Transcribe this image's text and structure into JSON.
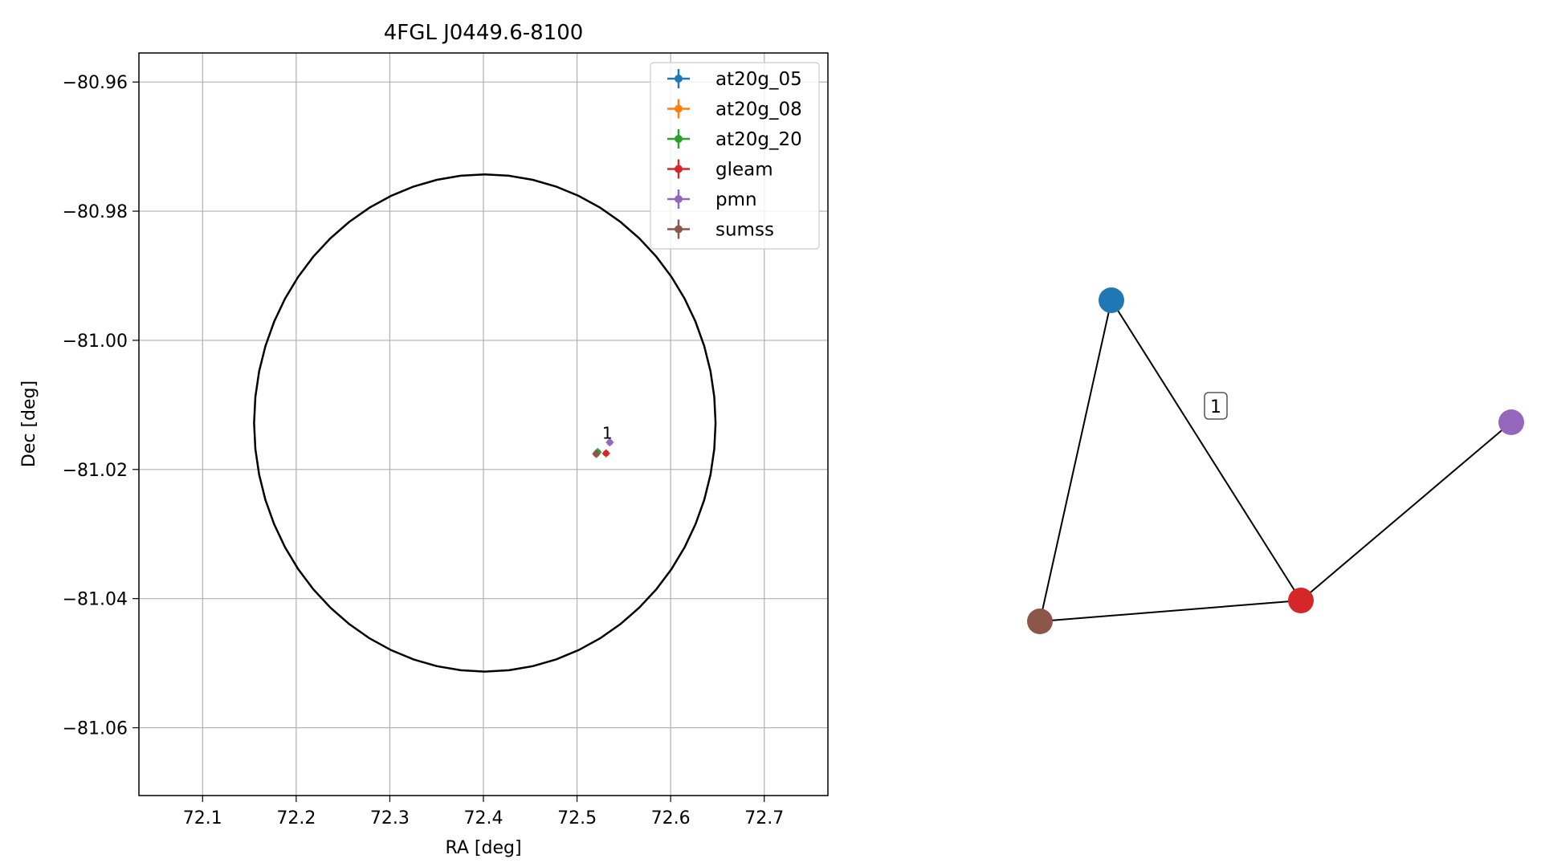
{
  "chart_data": [
    {
      "type": "scatter",
      "title": "4FGL J0449.6-8100",
      "xlabel": "RA [deg]",
      "ylabel": "Dec [deg]",
      "xlim": [
        72.032,
        72.768
      ],
      "ylim": [
        -81.0705,
        -80.9555
      ],
      "xticks": [
        72.1,
        72.2,
        72.3,
        72.4,
        72.5,
        72.6,
        72.7
      ],
      "xtick_labels": [
        "72.1",
        "72.2",
        "72.3",
        "72.4",
        "72.5",
        "72.6",
        "72.7"
      ],
      "yticks": [
        -80.96,
        -80.98,
        -81.0,
        -81.02,
        -81.04,
        -81.06
      ],
      "ytick_labels": [
        "−80.96",
        "−80.98",
        "−81.00",
        "−81.02",
        "−81.04",
        "−81.06"
      ],
      "grid": true,
      "legend_position": "upper-right",
      "series": [
        {
          "name": "at20g_05",
          "color": "#1f77b4",
          "points": [
            {
              "x": 72.521,
              "y": -81.0175
            }
          ]
        },
        {
          "name": "at20g_08",
          "color": "#ff7f0e",
          "points": [
            {
              "x": 72.521,
              "y": -81.0175
            }
          ]
        },
        {
          "name": "at20g_20",
          "color": "#2ca02c",
          "points": [
            {
              "x": 72.522,
              "y": -81.0173
            }
          ]
        },
        {
          "name": "gleam",
          "color": "#d62728",
          "points": [
            {
              "x": 72.531,
              "y": -81.0175
            }
          ]
        },
        {
          "name": "pmn",
          "color": "#9467bd",
          "points": [
            {
              "x": 72.535,
              "y": -81.0158
            }
          ]
        },
        {
          "name": "sumss",
          "color": "#8c564b",
          "points": [
            {
              "x": 72.5205,
              "y": -81.0176
            }
          ]
        }
      ],
      "circle": {
        "center_x": 72.4015,
        "center_y": -81.0128,
        "radius_dec": 0.0385,
        "color": "#000000"
      },
      "annotations": [
        {
          "text": "1",
          "x": 72.534,
          "y": -81.0155
        }
      ]
    },
    {
      "type": "network",
      "nodes": [
        {
          "id": "at20g_05",
          "color": "#1f77b4"
        },
        {
          "id": "pmn",
          "color": "#9467bd"
        },
        {
          "id": "gleam",
          "color": "#d62728"
        },
        {
          "id": "sumss",
          "color": "#8c564b"
        }
      ],
      "edges": [
        {
          "source": "at20g_05",
          "target": "gleam"
        },
        {
          "source": "at20g_05",
          "target": "sumss"
        },
        {
          "source": "sumss",
          "target": "gleam"
        },
        {
          "source": "gleam",
          "target": "pmn"
        }
      ],
      "labels": [
        {
          "text": "1"
        }
      ]
    }
  ]
}
